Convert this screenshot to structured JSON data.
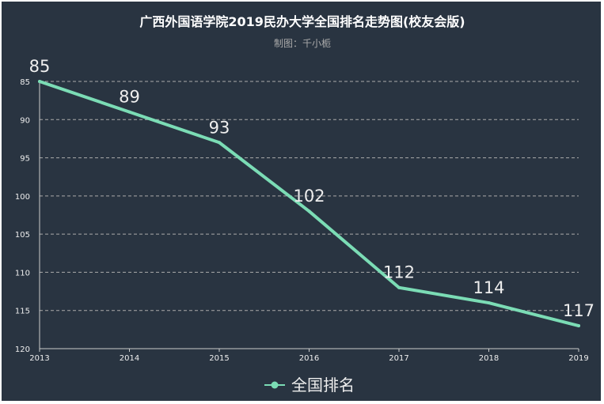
{
  "chart_data": {
    "type": "line",
    "title": "广西外国语学院2019民办大学全国排名走势图(校友会版)",
    "subtitle": "制图：千小栀",
    "x": [
      "2013",
      "2014",
      "2015",
      "2016",
      "2017",
      "2018",
      "2019"
    ],
    "series": [
      {
        "name": "全国排名",
        "values": [
          85,
          89,
          93,
          102,
          112,
          114,
          117
        ]
      }
    ],
    "y_ticks": [
      85,
      90,
      95,
      100,
      105,
      110,
      115,
      120
    ],
    "ylim": [
      85,
      120
    ],
    "y_inverted": true,
    "grid": "horizontal dashed",
    "legend_position": "bottom-center",
    "colors": {
      "background": "#293441",
      "line": "#7bdcb5",
      "text": "#eeeeee",
      "grid": "#aaaaaa"
    }
  }
}
